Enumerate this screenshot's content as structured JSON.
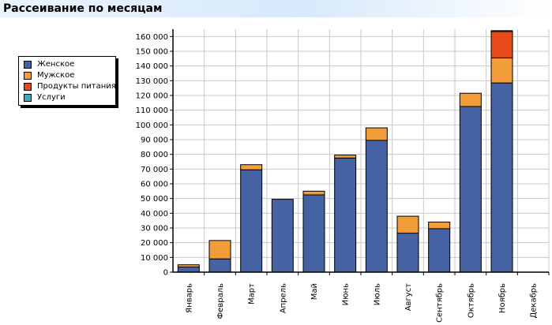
{
  "header": {
    "title": "Рассеивание по месяцам"
  },
  "chart_data": {
    "type": "bar",
    "stacked": true,
    "title": "Рассеивание по месяцам",
    "xlabel": "",
    "ylabel": "",
    "ylim": [
      0,
      165000
    ],
    "ytick_step": 10000,
    "grid": true,
    "legend_position": "left",
    "yticks": [
      "0",
      "10 000",
      "20 000",
      "30 000",
      "40 000",
      "50 000",
      "60 000",
      "70 000",
      "80 000",
      "90 000",
      "100 000",
      "110 000",
      "120 000",
      "130 000",
      "140 000",
      "150 000",
      "160 000"
    ],
    "categories": [
      "Январь",
      "Февраль",
      "Март",
      "Апрель",
      "Май",
      "Июнь",
      "Июль",
      "Август",
      "Сентябрь",
      "Октябрь",
      "Ноябрь",
      "Декабрь"
    ],
    "series": [
      {
        "name": "Женское",
        "color": "#4563a3",
        "values": [
          3500,
          9000,
          69500,
          49500,
          52500,
          77500,
          89500,
          26500,
          29500,
          112500,
          128500,
          0
        ]
      },
      {
        "name": "Мужское",
        "color": "#f29c3a",
        "values": [
          1500,
          12500,
          3500,
          0,
          2500,
          2000,
          8500,
          11500,
          4500,
          9000,
          17000,
          0
        ]
      },
      {
        "name": "Продукты питания",
        "color": "#e64a19",
        "values": [
          0,
          0,
          0,
          0,
          0,
          0,
          0,
          0,
          0,
          0,
          18000,
          0
        ]
      },
      {
        "name": "Услуги",
        "color": "#3fa9c0",
        "values": [
          0,
          0,
          0,
          0,
          0,
          0,
          0,
          0,
          0,
          0,
          500,
          0
        ]
      }
    ]
  }
}
